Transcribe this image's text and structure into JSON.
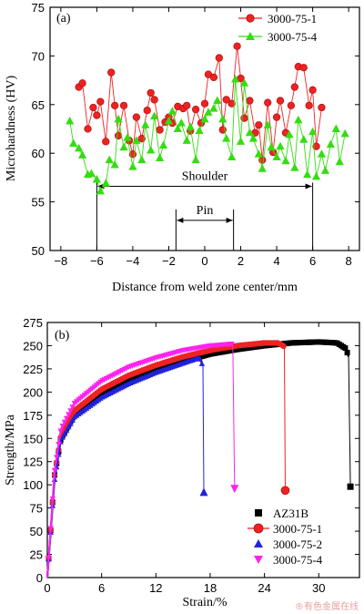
{
  "chart_data": [
    {
      "type": "line",
      "panel_label": "(a)",
      "xlabel": "Distance from weld zone center/mm",
      "ylabel": "Microhardness (HV)",
      "xlim": [
        -8.6,
        8.6
      ],
      "ylim": [
        50,
        75
      ],
      "xticks": [
        -8,
        -6,
        -4,
        -2,
        0,
        2,
        4,
        6,
        8
      ],
      "xtick_labels": [
        "−8",
        "−6",
        "−4",
        "−2",
        "0",
        "2",
        "4",
        "6",
        "8"
      ],
      "yticks": [
        50,
        55,
        60,
        65,
        70,
        75
      ],
      "legend_position": "top-right",
      "annotations": {
        "shoulder": {
          "label": "Shoulder",
          "x_from": -6,
          "x_to": 6,
          "y": 56.6
        },
        "pin": {
          "label": "Pin",
          "x_from": -1.6,
          "x_to": 1.6,
          "y": 53.1
        }
      },
      "series": [
        {
          "name": "3000-75-1",
          "color": "#ee2222",
          "marker": "circle",
          "x": [
            -7.0,
            -6.8,
            -6.5,
            -6.2,
            -6.0,
            -5.8,
            -5.5,
            -5.2,
            -5.0,
            -4.8,
            -4.5,
            -4.2,
            -4.0,
            -3.8,
            -3.5,
            -3.2,
            -3.0,
            -2.8,
            -2.5,
            -2.2,
            -2.0,
            -1.8,
            -1.5,
            -1.2,
            -1.0,
            -0.8,
            -0.5,
            -0.2,
            0.0,
            0.2,
            0.5,
            0.8,
            1.0,
            1.2,
            1.5,
            1.8,
            2.0,
            2.2,
            2.5,
            2.8,
            3.0,
            3.2,
            3.5,
            3.8,
            4.0,
            4.2,
            4.5,
            4.8,
            5.0,
            5.2,
            5.5,
            5.8,
            6.0,
            6.2,
            6.5
          ],
          "y": [
            66.8,
            67.2,
            62.5,
            64.7,
            63.9,
            65.3,
            61.2,
            68.3,
            64.9,
            61.8,
            64.9,
            61.3,
            59.9,
            63.7,
            61.5,
            64.4,
            66.2,
            65.5,
            62.4,
            63.2,
            63.7,
            63.1,
            64.8,
            64.6,
            64.9,
            62.3,
            64.5,
            63.1,
            65.1,
            68.1,
            67.8,
            69.8,
            62.4,
            65.5,
            65.1,
            71.0,
            67.7,
            63.6,
            65.4,
            62.1,
            62.9,
            59.3,
            65.2,
            60.1,
            63.7,
            65.4,
            62.1,
            64.9,
            66.8,
            68.9,
            68.8,
            64.9,
            66.5,
            60.7,
            64.7
          ]
        },
        {
          "name": "3000-75-4",
          "color": "#33dd11",
          "marker": "triangle-up",
          "x": [
            -7.5,
            -7.3,
            -7.0,
            -6.8,
            -6.5,
            -6.3,
            -6.0,
            -5.8,
            -5.5,
            -5.3,
            -5.0,
            -4.8,
            -4.5,
            -4.3,
            -4.0,
            -3.8,
            -3.5,
            -3.3,
            -3.0,
            -2.8,
            -2.5,
            -2.3,
            -2.0,
            -1.8,
            -1.5,
            -1.3,
            -1.0,
            -0.8,
            -0.5,
            -0.3,
            0.0,
            0.2,
            0.5,
            0.7,
            1.0,
            1.2,
            1.5,
            1.7,
            2.0,
            2.2,
            2.5,
            2.7,
            3.0,
            3.2,
            3.5,
            3.7,
            4.0,
            4.2,
            4.5,
            4.7,
            5.0,
            5.2,
            5.5,
            5.7,
            6.0,
            6.2,
            6.5,
            6.7,
            7.0,
            7.3,
            7.5,
            7.8
          ],
          "y": [
            63.3,
            61.0,
            60.5,
            59.8,
            57.8,
            57.9,
            57.3,
            56.1,
            56.9,
            59.3,
            58.8,
            63.5,
            60.6,
            61.6,
            58.6,
            61.3,
            59.3,
            62.9,
            60.3,
            63.8,
            59.5,
            60.8,
            63.3,
            64.3,
            62.5,
            63.1,
            61.3,
            62.7,
            59.3,
            62.3,
            63.5,
            64.2,
            64.6,
            65.4,
            63.5,
            61.5,
            59.6,
            67.6,
            61.2,
            67.2,
            62.1,
            61.5,
            59.9,
            58.4,
            62.9,
            60.6,
            59.6,
            60.7,
            59.2,
            61.9,
            58.5,
            63.4,
            61.4,
            57.8,
            62.2,
            57.6,
            59.9,
            58.2,
            60.9,
            62.5,
            59.1,
            62.0
          ]
        }
      ]
    },
    {
      "type": "line",
      "panel_label": "(b)",
      "xlabel": "Strain/%",
      "ylabel": "Strength/MPa",
      "xlim": [
        0,
        34.5
      ],
      "ylim": [
        0,
        275
      ],
      "xticks": [
        0,
        6,
        12,
        18,
        24,
        30
      ],
      "yticks": [
        0,
        25,
        50,
        75,
        100,
        125,
        150,
        175,
        200,
        225,
        250,
        275
      ],
      "legend_position": "bottom-right",
      "series": [
        {
          "name": "AZ31B",
          "color": "#000000",
          "marker": "square",
          "x": [
            0,
            0.8,
            1.5,
            3,
            6,
            9,
            12,
            15,
            18,
            21,
            24,
            27,
            30,
            32,
            33,
            33.3,
            33.5
          ],
          "y": [
            0,
            110,
            150,
            176,
            198,
            213,
            224,
            233,
            241,
            246,
            250,
            253,
            254,
            253,
            247,
            238,
            98
          ],
          "fracture": [
            33.5,
            98
          ]
        },
        {
          "name": "3000-75-1",
          "color": "#ee2222",
          "marker": "circle",
          "x": [
            0,
            0.8,
            1.5,
            3,
            6,
            9,
            12,
            15,
            18,
            21,
            24,
            25.5,
            26.2,
            26.3
          ],
          "y": [
            0,
            110,
            153,
            180,
            203,
            218,
            229,
            238,
            245,
            250,
            253,
            253,
            249,
            94
          ],
          "fracture": [
            26.3,
            94
          ]
        },
        {
          "name": "3000-75-2",
          "color": "#2222dd",
          "marker": "triangle-up",
          "x": [
            0,
            0.8,
            1.5,
            3,
            6,
            9,
            12,
            15,
            16.8,
            17.2,
            17.3
          ],
          "y": [
            0,
            105,
            148,
            173,
            194,
            209,
            221,
            231,
            237,
            228,
            92
          ],
          "fracture": [
            17.3,
            92
          ]
        },
        {
          "name": "3000-75-4",
          "color": "#ff22ee",
          "marker": "triangle-down",
          "x": [
            0,
            0.8,
            1.5,
            3,
            6,
            9,
            12,
            15,
            18,
            20.5,
            20.7
          ],
          "y": [
            0,
            115,
            160,
            188,
            212,
            227,
            237,
            245,
            250,
            252,
            96
          ],
          "fracture": [
            20.7,
            96
          ]
        }
      ]
    }
  ],
  "watermark": "®有色金属在线"
}
